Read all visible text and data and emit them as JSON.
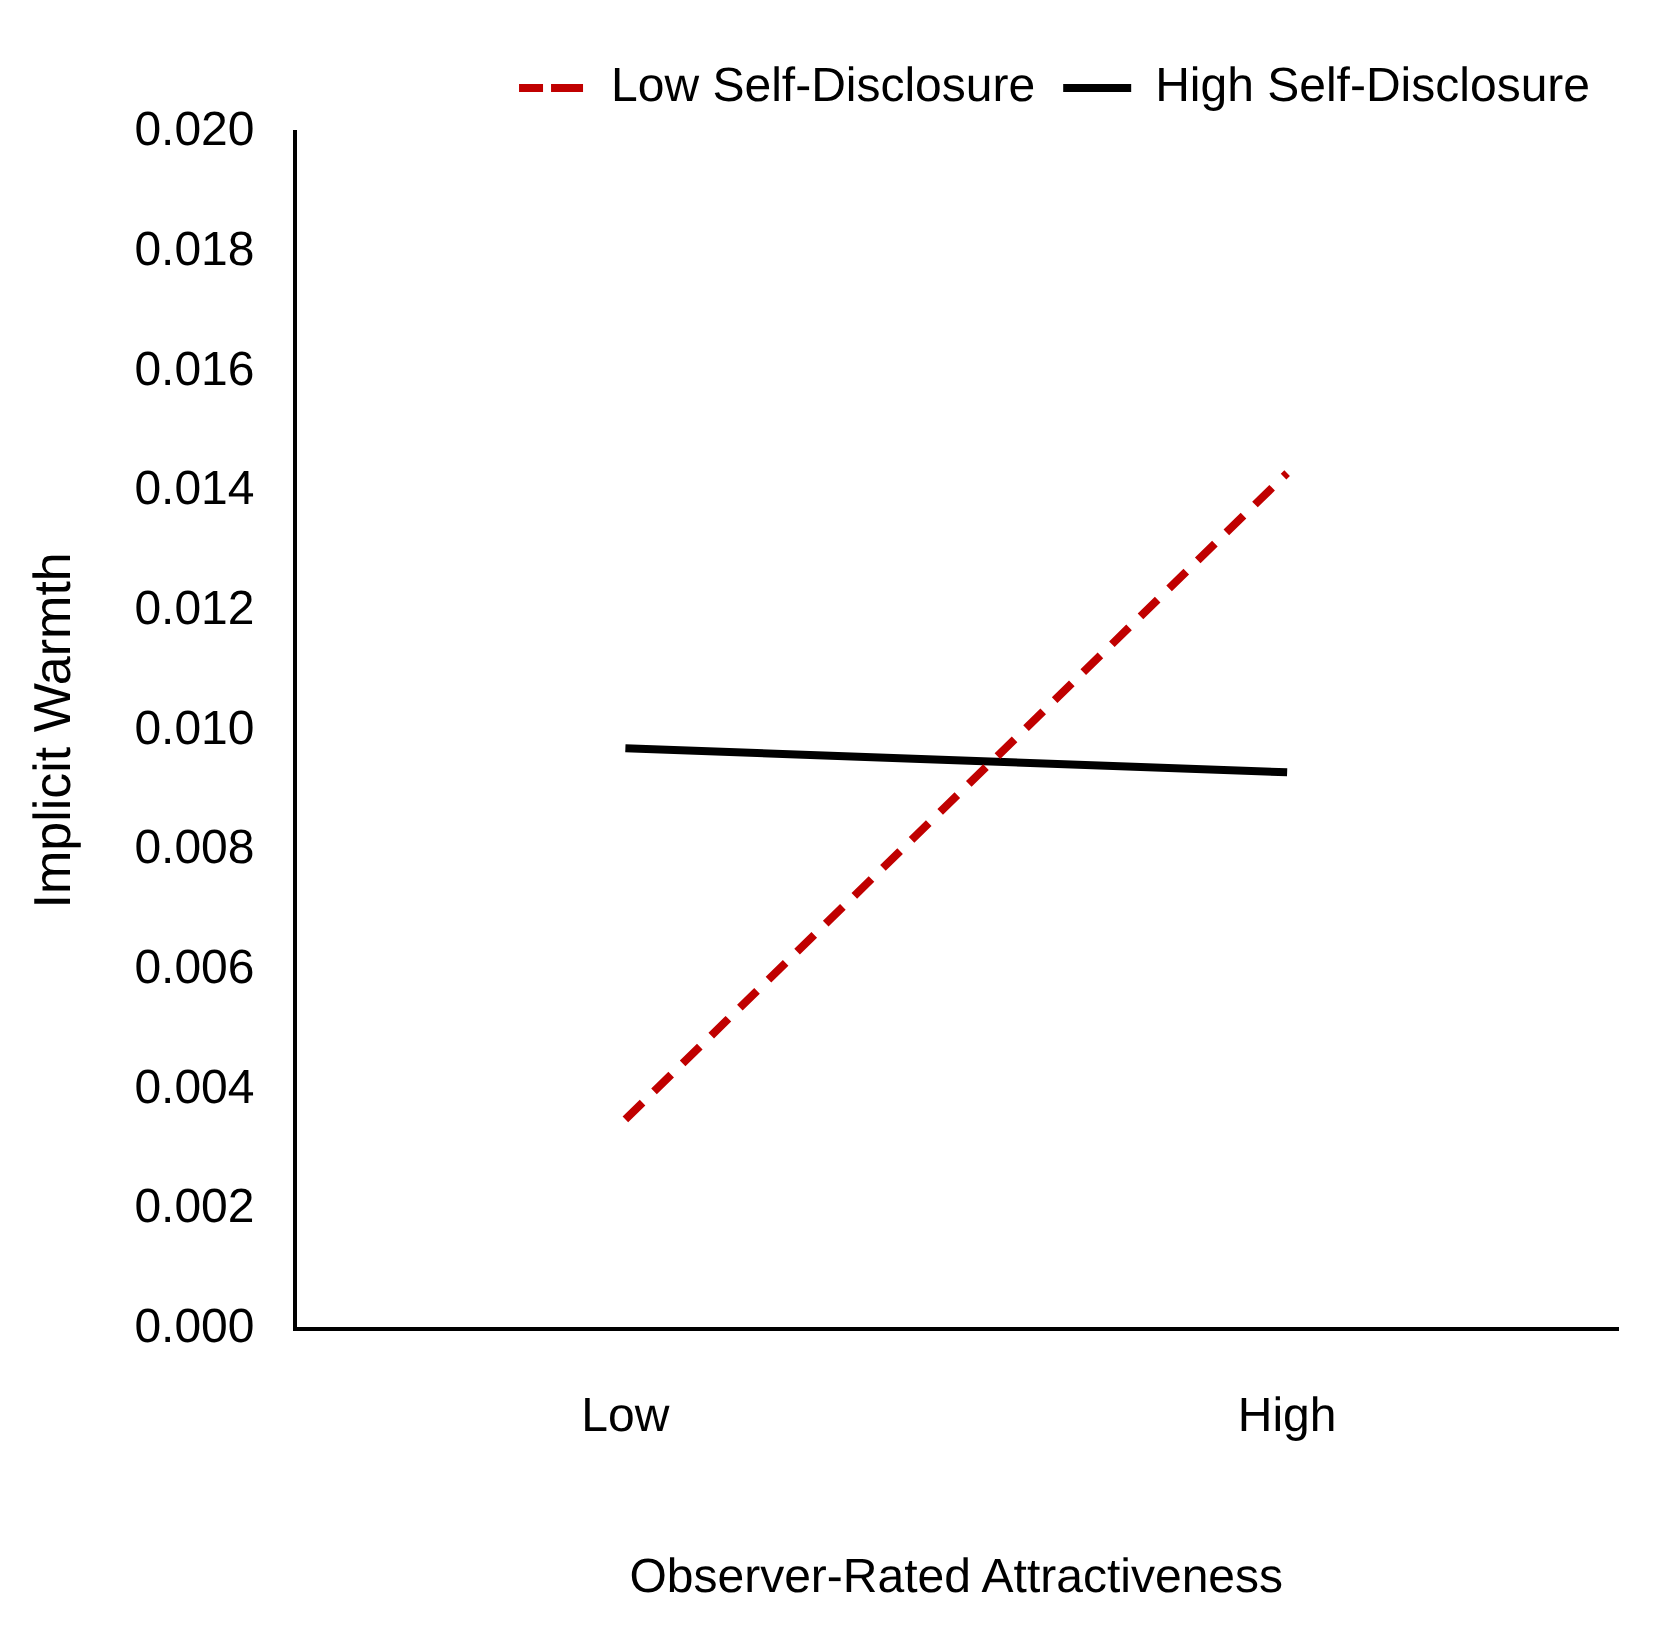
{
  "chart_data": {
    "type": "line",
    "xlabel": "Observer-Rated Attractiveness",
    "ylabel": "Implicit Warmth",
    "categories": [
      "Low",
      "High"
    ],
    "series": [
      {
        "name": "Low Self-Disclosure",
        "color": "#c00000",
        "line_style": "dashed",
        "values": [
          0.0035,
          0.0143
        ]
      },
      {
        "name": "High Self-Disclosure",
        "color": "#000000",
        "line_style": "solid",
        "values": [
          0.0097,
          0.0093
        ]
      }
    ],
    "ylim": [
      0,
      0.02
    ],
    "yticks": [
      {
        "value": 0,
        "label": "0.000"
      },
      {
        "value": 0.002,
        "label": "0.002"
      },
      {
        "value": 0.004,
        "label": "0.004"
      },
      {
        "value": 0.006,
        "label": "0.006"
      },
      {
        "value": 0.008,
        "label": "0.008"
      },
      {
        "value": 0.01,
        "label": "0.010"
      },
      {
        "value": 0.012,
        "label": "0.012"
      },
      {
        "value": 0.014,
        "label": "0.014"
      },
      {
        "value": 0.016,
        "label": "0.016"
      },
      {
        "value": 0.018,
        "label": "0.018"
      },
      {
        "value": 0.02,
        "label": "0.020"
      }
    ],
    "grid": false,
    "legend": "top right",
    "marker": "none"
  }
}
